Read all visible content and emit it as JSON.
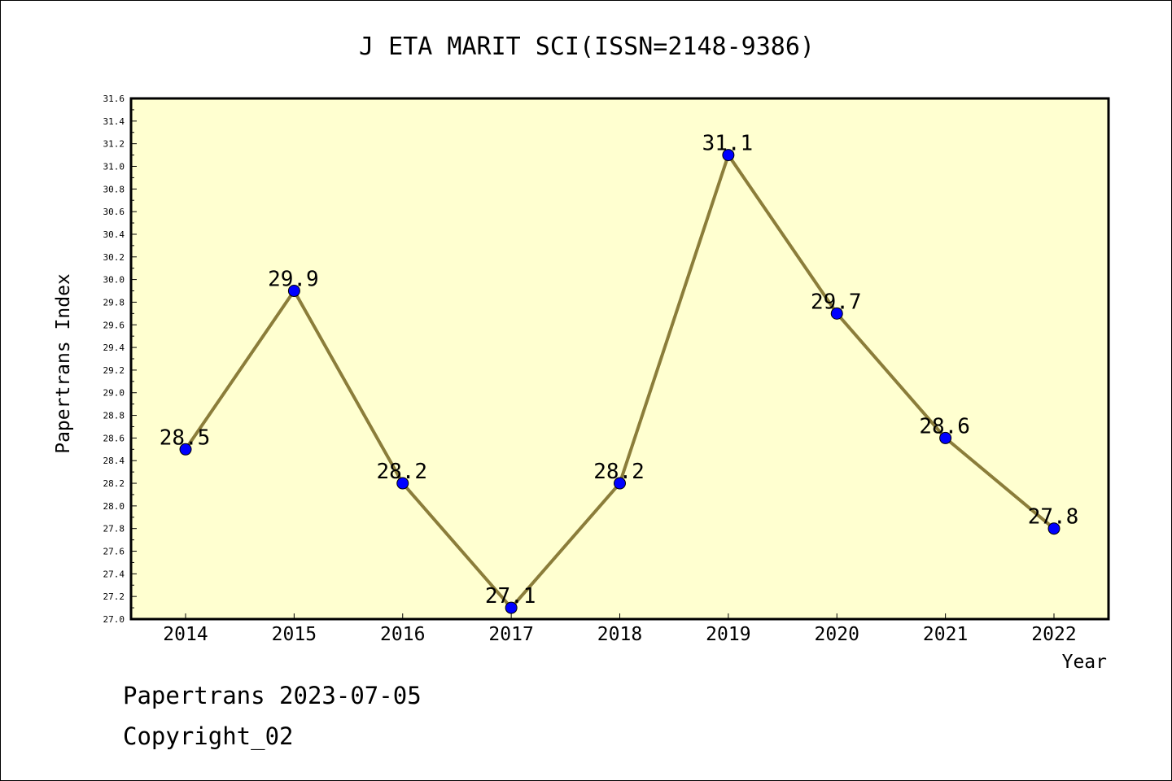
{
  "chart_data": {
    "type": "line",
    "title": "J ETA MARIT SCI(ISSN=2148-9386)",
    "xlabel": "Year",
    "ylabel": "Papertrans Index",
    "categories": [
      "2014",
      "2015",
      "2016",
      "2017",
      "2018",
      "2019",
      "2020",
      "2021",
      "2022"
    ],
    "series": [
      {
        "values": [
          28.5,
          29.9,
          28.2,
          27.1,
          28.2,
          31.1,
          29.7,
          28.6,
          27.8
        ],
        "data_labels": [
          "28.5",
          "29.9",
          "28.2",
          "27.1",
          "28.2",
          "31.1",
          "29.7",
          "28.6",
          "27.8"
        ]
      }
    ],
    "ylim": [
      27.0,
      31.6
    ],
    "yticks": [
      "27.0",
      "27.2",
      "27.4",
      "27.6",
      "27.8",
      "28.0",
      "28.2",
      "28.4",
      "28.6",
      "28.8",
      "29.0",
      "29.2",
      "29.4",
      "29.6",
      "29.8",
      "30.0",
      "30.2",
      "30.4",
      "30.6",
      "30.8",
      "31.0",
      "31.2",
      "31.4",
      "31.6"
    ],
    "grid": false,
    "legend": "none",
    "colors": {
      "plot_background": "#ffffd0",
      "line": "#8b7d3a",
      "marker": "#0000ff"
    }
  },
  "footer": {
    "line1": "Papertrans 2023-07-05",
    "line2": "Copyright_02"
  }
}
